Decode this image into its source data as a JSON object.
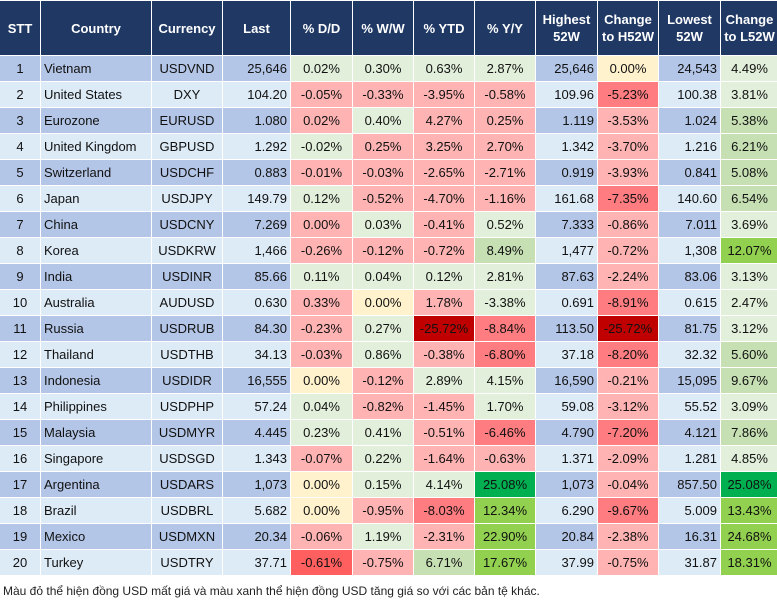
{
  "headers": [
    "STT",
    "Country",
    "Currency",
    "Last",
    "% D/D",
    "% W/W",
    "% YTD",
    "% Y/Y",
    "Highest 52W",
    "Change to H52W",
    "Lowest 52W",
    "Change to L52W"
  ],
  "colors": {
    "lg": "#e2efda",
    "pk": "#ffb3b3",
    "rd": "#ff7c80",
    "rd2": "#ff5f5f",
    "dr": "#c00000",
    "yl": "#fff2cc",
    "gm": "#c6e0b4",
    "g": "#92d050",
    "gd": "#00b050",
    "header": "#1f3864",
    "row_odd": "#b4c6e7",
    "row_even": "#ddebf7"
  },
  "rows": [
    {
      "stt": "1",
      "country": "Vietnam",
      "currency": "USDVND",
      "last": "25,646",
      "dd": "0.02%",
      "ww": "0.30%",
      "ytd": "0.63%",
      "yy": "2.87%",
      "h52": "25,646",
      "ch": "0.00%",
      "l52": "24,543",
      "cl": "4.49%",
      "fill": [
        "lg",
        "lg",
        "lg",
        "lg",
        "yl",
        "lg"
      ]
    },
    {
      "stt": "2",
      "country": "United States",
      "currency": "DXY",
      "last": "104.20",
      "dd": "-0.05%",
      "ww": "-0.33%",
      "ytd": "-3.95%",
      "yy": "-0.58%",
      "h52": "109.96",
      "ch": "-5.23%",
      "l52": "100.38",
      "cl": "3.81%",
      "fill": [
        "pk",
        "pk",
        "pk",
        "pk",
        "rd",
        "lg"
      ]
    },
    {
      "stt": "3",
      "country": "Eurozone",
      "currency": "EURUSD",
      "last": "1.080",
      "dd": "0.02%",
      "ww": "0.40%",
      "ytd": "4.27%",
      "yy": "0.25%",
      "h52": "1.119",
      "ch": "-3.53%",
      "l52": "1.024",
      "cl": "5.38%",
      "fill": [
        "pk",
        "lg",
        "pk",
        "pk",
        "pk",
        "gm"
      ]
    },
    {
      "stt": "4",
      "country": "United Kingdom",
      "currency": "GBPUSD",
      "last": "1.292",
      "dd": "-0.02%",
      "ww": "0.25%",
      "ytd": "3.25%",
      "yy": "2.70%",
      "h52": "1.342",
      "ch": "-3.70%",
      "l52": "1.216",
      "cl": "6.21%",
      "fill": [
        "lg",
        "pk",
        "pk",
        "pk",
        "pk",
        "gm"
      ]
    },
    {
      "stt": "5",
      "country": "Switzerland",
      "currency": "USDCHF",
      "last": "0.883",
      "dd": "-0.01%",
      "ww": "-0.03%",
      "ytd": "-2.65%",
      "yy": "-2.71%",
      "h52": "0.919",
      "ch": "-3.93%",
      "l52": "0.841",
      "cl": "5.08%",
      "fill": [
        "pk",
        "pk",
        "pk",
        "pk",
        "pk",
        "gm"
      ]
    },
    {
      "stt": "6",
      "country": "Japan",
      "currency": "USDJPY",
      "last": "149.79",
      "dd": "0.12%",
      "ww": "-0.52%",
      "ytd": "-4.70%",
      "yy": "-1.16%",
      "h52": "161.68",
      "ch": "-7.35%",
      "l52": "140.60",
      "cl": "6.54%",
      "fill": [
        "lg",
        "pk",
        "pk",
        "pk",
        "rd",
        "gm"
      ]
    },
    {
      "stt": "7",
      "country": "China",
      "currency": "USDCNY",
      "last": "7.269",
      "dd": "0.00%",
      "ww": "0.03%",
      "ytd": "-0.41%",
      "yy": "0.52%",
      "h52": "7.333",
      "ch": "-0.86%",
      "l52": "7.011",
      "cl": "3.69%",
      "fill": [
        "pk",
        "lg",
        "pk",
        "lg",
        "pk",
        "lg"
      ]
    },
    {
      "stt": "8",
      "country": "Korea",
      "currency": "USDKRW",
      "last": "1,466",
      "dd": "-0.26%",
      "ww": "-0.12%",
      "ytd": "-0.72%",
      "yy": "8.49%",
      "h52": "1,477",
      "ch": "-0.72%",
      "l52": "1,308",
      "cl": "12.07%",
      "fill": [
        "pk",
        "pk",
        "pk",
        "gm",
        "pk",
        "g"
      ]
    },
    {
      "stt": "9",
      "country": "India",
      "currency": "USDINR",
      "last": "85.66",
      "dd": "0.11%",
      "ww": "0.04%",
      "ytd": "0.12%",
      "yy": "2.81%",
      "h52": "87.63",
      "ch": "-2.24%",
      "l52": "83.06",
      "cl": "3.13%",
      "fill": [
        "lg",
        "lg",
        "lg",
        "lg",
        "pk",
        "lg"
      ]
    },
    {
      "stt": "10",
      "country": "Australia",
      "currency": "AUDUSD",
      "last": "0.630",
      "dd": "0.33%",
      "ww": "0.00%",
      "ytd": "1.78%",
      "yy": "-3.38%",
      "h52": "0.691",
      "ch": "-8.91%",
      "l52": "0.615",
      "cl": "2.47%",
      "fill": [
        "pk",
        "yl",
        "pk",
        "lg",
        "rd",
        "lg"
      ]
    },
    {
      "stt": "11",
      "country": "Russia",
      "currency": "USDRUB",
      "last": "84.30",
      "dd": "-0.23%",
      "ww": "0.27%",
      "ytd": "-25.72%",
      "yy": "-8.84%",
      "h52": "113.50",
      "ch": "-25.72%",
      "l52": "81.75",
      "cl": "3.12%",
      "fill": [
        "pk",
        "lg",
        "dr",
        "rd",
        "dr",
        "lg"
      ]
    },
    {
      "stt": "12",
      "country": "Thailand",
      "currency": "USDTHB",
      "last": "34.13",
      "dd": "-0.03%",
      "ww": "0.86%",
      "ytd": "-0.38%",
      "yy": "-6.80%",
      "h52": "37.18",
      "ch": "-8.20%",
      "l52": "32.32",
      "cl": "5.60%",
      "fill": [
        "pk",
        "lg",
        "pk",
        "rd",
        "rd",
        "gm"
      ]
    },
    {
      "stt": "13",
      "country": "Indonesia",
      "currency": "USDIDR",
      "last": "16,555",
      "dd": "0.00%",
      "ww": "-0.12%",
      "ytd": "2.89%",
      "yy": "4.15%",
      "h52": "16,590",
      "ch": "-0.21%",
      "l52": "15,095",
      "cl": "9.67%",
      "fill": [
        "yl",
        "pk",
        "lg",
        "lg",
        "pk",
        "gm"
      ]
    },
    {
      "stt": "14",
      "country": "Philippines",
      "currency": "USDPHP",
      "last": "57.24",
      "dd": "0.04%",
      "ww": "-0.82%",
      "ytd": "-1.45%",
      "yy": "1.70%",
      "h52": "59.08",
      "ch": "-3.12%",
      "l52": "55.52",
      "cl": "3.09%",
      "fill": [
        "lg",
        "pk",
        "pk",
        "lg",
        "pk",
        "lg"
      ]
    },
    {
      "stt": "15",
      "country": "Malaysia",
      "currency": "USDMYR",
      "last": "4.445",
      "dd": "0.23%",
      "ww": "0.41%",
      "ytd": "-0.51%",
      "yy": "-6.46%",
      "h52": "4.790",
      "ch": "-7.20%",
      "l52": "4.121",
      "cl": "7.86%",
      "fill": [
        "lg",
        "lg",
        "pk",
        "rd",
        "rd",
        "gm"
      ]
    },
    {
      "stt": "16",
      "country": "Singapore",
      "currency": "USDSGD",
      "last": "1.343",
      "dd": "-0.07%",
      "ww": "0.22%",
      "ytd": "-1.64%",
      "yy": "-0.63%",
      "h52": "1.371",
      "ch": "-2.09%",
      "l52": "1.281",
      "cl": "4.85%",
      "fill": [
        "pk",
        "lg",
        "pk",
        "pk",
        "pk",
        "lg"
      ]
    },
    {
      "stt": "17",
      "country": "Argentina",
      "currency": "USDARS",
      "last": "1,073",
      "dd": "0.00%",
      "ww": "0.15%",
      "ytd": "4.14%",
      "yy": "25.08%",
      "h52": "1,073",
      "ch": "-0.04%",
      "l52": "857.50",
      "cl": "25.08%",
      "fill": [
        "yl",
        "lg",
        "lg",
        "gd",
        "pk",
        "gd"
      ]
    },
    {
      "stt": "18",
      "country": "Brazil",
      "currency": "USDBRL",
      "last": "5.682",
      "dd": "0.00%",
      "ww": "-0.95%",
      "ytd": "-8.03%",
      "yy": "12.34%",
      "h52": "6.290",
      "ch": "-9.67%",
      "l52": "5.009",
      "cl": "13.43%",
      "fill": [
        "yl",
        "pk",
        "rd",
        "g",
        "rd",
        "g"
      ]
    },
    {
      "stt": "19",
      "country": "Mexico",
      "currency": "USDMXN",
      "last": "20.34",
      "dd": "-0.06%",
      "ww": "1.19%",
      "ytd": "-2.31%",
      "yy": "22.90%",
      "h52": "20.84",
      "ch": "-2.38%",
      "l52": "16.31",
      "cl": "24.68%",
      "fill": [
        "pk",
        "lg",
        "pk",
        "g",
        "pk",
        "g"
      ]
    },
    {
      "stt": "20",
      "country": "Turkey",
      "currency": "USDTRY",
      "last": "37.71",
      "dd": "-0.61%",
      "ww": "-0.75%",
      "ytd": "6.71%",
      "yy": "17.67%",
      "h52": "37.99",
      "ch": "-0.75%",
      "l52": "31.87",
      "cl": "18.31%",
      "fill": [
        "rd2",
        "pk",
        "gm",
        "g",
        "pk",
        "g"
      ]
    }
  ],
  "footnote": "Màu đỏ thể hiện đồng USD mất giá và màu xanh thể hiện đồng USD tăng giá so với các bản tệ khác."
}
